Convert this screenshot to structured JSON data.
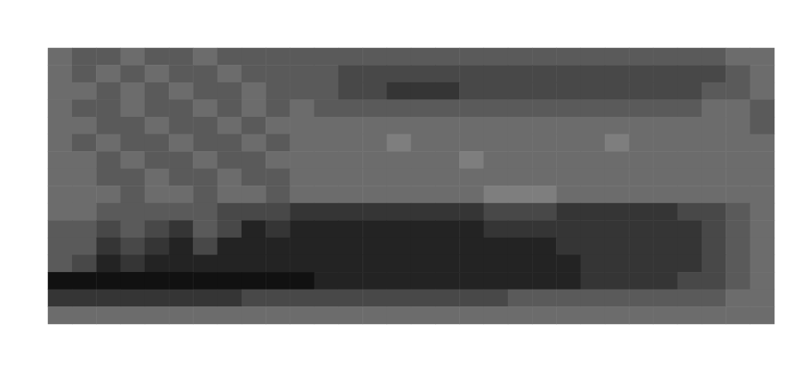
{
  "chart_data": {
    "type": "heatmap",
    "tick_labels": false,
    "cells": [
      [
        4,
        5,
        5,
        4,
        5,
        5,
        4,
        5,
        5,
        5,
        5,
        5,
        5,
        5,
        5,
        5,
        5,
        5,
        5,
        5,
        5,
        5,
        5,
        5,
        5,
        5,
        5,
        5,
        4,
        4
      ],
      [
        4,
        5,
        4,
        5,
        4,
        5,
        5,
        4,
        5,
        5,
        5,
        5,
        6,
        6,
        6,
        6,
        6,
        6,
        6,
        6,
        6,
        6,
        6,
        6,
        6,
        6,
        6,
        6,
        5,
        4
      ],
      [
        4,
        4,
        5,
        4,
        5,
        4,
        5,
        5,
        4,
        5,
        5,
        5,
        6,
        6,
        7,
        7,
        7,
        6,
        6,
        6,
        6,
        6,
        6,
        6,
        6,
        6,
        6,
        5,
        5,
        4
      ],
      [
        4,
        5,
        5,
        4,
        5,
        5,
        4,
        5,
        4,
        5,
        4,
        5,
        5,
        5,
        5,
        5,
        5,
        5,
        5,
        5,
        5,
        5,
        5,
        5,
        5,
        5,
        5,
        4,
        4,
        5
      ],
      [
        4,
        4,
        5,
        5,
        4,
        5,
        5,
        4,
        5,
        4,
        4,
        4,
        4,
        4,
        4,
        4,
        4,
        4,
        4,
        4,
        4,
        4,
        4,
        4,
        4,
        4,
        4,
        4,
        4,
        5
      ],
      [
        4,
        5,
        4,
        5,
        5,
        4,
        5,
        5,
        4,
        5,
        4,
        4,
        4,
        4,
        3,
        4,
        4,
        4,
        4,
        4,
        4,
        4,
        4,
        3,
        4,
        4,
        4,
        4,
        4,
        4
      ],
      [
        4,
        4,
        5,
        4,
        5,
        5,
        4,
        5,
        5,
        4,
        4,
        4,
        4,
        4,
        4,
        4,
        4,
        3,
        4,
        4,
        4,
        4,
        4,
        4,
        4,
        4,
        4,
        4,
        4,
        4
      ],
      [
        4,
        4,
        5,
        5,
        4,
        5,
        5,
        4,
        5,
        5,
        4,
        4,
        4,
        4,
        4,
        4,
        4,
        4,
        4,
        4,
        4,
        4,
        4,
        4,
        4,
        4,
        4,
        4,
        4,
        4
      ],
      [
        4,
        4,
        4,
        5,
        4,
        4,
        5,
        4,
        4,
        5,
        4,
        4,
        4,
        4,
        4,
        4,
        4,
        4,
        3,
        3,
        3,
        4,
        4,
        4,
        4,
        4,
        4,
        4,
        4,
        4
      ],
      [
        4,
        4,
        5,
        5,
        5,
        5,
        5,
        6,
        6,
        6,
        7,
        7,
        7,
        7,
        7,
        7,
        7,
        7,
        6,
        6,
        6,
        7,
        7,
        7,
        7,
        7,
        6,
        6,
        5,
        4
      ],
      [
        5,
        5,
        6,
        5,
        6,
        7,
        5,
        6,
        8,
        7,
        8,
        8,
        8,
        8,
        8,
        8,
        8,
        8,
        7,
        7,
        7,
        7,
        7,
        7,
        7,
        7,
        7,
        6,
        5,
        4
      ],
      [
        5,
        5,
        7,
        6,
        7,
        8,
        6,
        8,
        8,
        8,
        8,
        8,
        8,
        8,
        8,
        8,
        8,
        8,
        8,
        8,
        8,
        7,
        7,
        7,
        7,
        7,
        7,
        6,
        5,
        4
      ],
      [
        5,
        6,
        8,
        7,
        8,
        8,
        8,
        8,
        8,
        8,
        8,
        8,
        8,
        8,
        8,
        8,
        8,
        8,
        8,
        8,
        8,
        8,
        7,
        7,
        7,
        7,
        7,
        6,
        5,
        4
      ],
      [
        9,
        9,
        9,
        9,
        9,
        9,
        9,
        9,
        9,
        9,
        9,
        8,
        8,
        8,
        8,
        8,
        8,
        8,
        8,
        8,
        8,
        8,
        7,
        7,
        7,
        7,
        6,
        6,
        5,
        4
      ],
      [
        7,
        7,
        7,
        7,
        7,
        7,
        7,
        7,
        6,
        6,
        6,
        6,
        6,
        6,
        6,
        6,
        6,
        6,
        6,
        5,
        5,
        5,
        5,
        5,
        5,
        5,
        5,
        5,
        4,
        4
      ],
      [
        4,
        4,
        4,
        4,
        4,
        4,
        4,
        4,
        4,
        4,
        4,
        4,
        4,
        4,
        4,
        4,
        4,
        4,
        4,
        4,
        4,
        4,
        4,
        4,
        4,
        4,
        4,
        4,
        4,
        4
      ]
    ]
  }
}
